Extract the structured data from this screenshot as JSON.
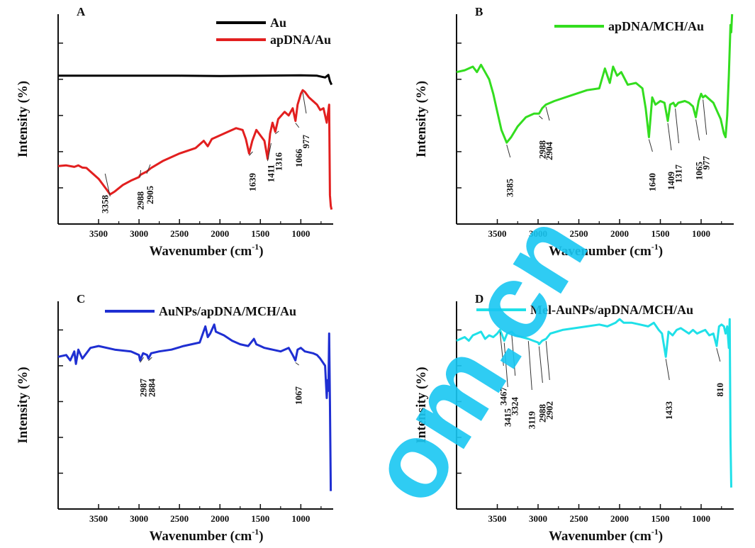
{
  "chart_data": [
    {
      "type": "line",
      "panel_label": "A",
      "xlabel": "Wavenumber (cm",
      "xlabel_sup": "-1",
      "xlabel_tail": ")",
      "ylabel": "Intensity   (%)",
      "xlim": [
        4000,
        600
      ],
      "x_reversed": true,
      "xticks": [
        3500,
        3000,
        2500,
        2000,
        1500,
        1000
      ],
      "xtick_labels": [
        "3500",
        "3000",
        "2500",
        "2000",
        "1500",
        "1000"
      ],
      "yticks": [
        0,
        1,
        2,
        3,
        4,
        5
      ],
      "ylim": [
        0,
        5.8
      ],
      "y_tick_labels_shown": false,
      "legend": [
        {
          "name": "Au",
          "color": "#000000"
        },
        {
          "name": "apDNA/Au",
          "color": "#e21f1f"
        }
      ],
      "series": [
        {
          "name": "Au",
          "color": "#000000",
          "x": [
            4000,
            3600,
            3000,
            2500,
            2000,
            1500,
            1000,
            800,
            700,
            660,
            640,
            620
          ],
          "y": [
            4.1,
            4.1,
            4.1,
            4.1,
            4.09,
            4.1,
            4.11,
            4.1,
            4.05,
            4.12,
            3.95,
            3.85
          ]
        },
        {
          "name": "apDNA/Au",
          "color": "#e21f1f",
          "x": [
            4000,
            3900,
            3800,
            3750,
            3700,
            3650,
            3600,
            3500,
            3400,
            3358,
            3300,
            3200,
            3100,
            3000,
            2988,
            2950,
            2905,
            2850,
            2700,
            2500,
            2300,
            2200,
            2150,
            2100,
            2000,
            1900,
            1800,
            1720,
            1680,
            1639,
            1600,
            1550,
            1500,
            1450,
            1411,
            1380,
            1350,
            1316,
            1280,
            1200,
            1150,
            1100,
            1066,
            1040,
            1000,
            977,
            950,
            900,
            850,
            800,
            760,
            720,
            700,
            680,
            650,
            640,
            630,
            620
          ],
          "y": [
            1.6,
            1.62,
            1.58,
            1.62,
            1.56,
            1.55,
            1.45,
            1.25,
            0.95,
            0.82,
            0.9,
            1.08,
            1.2,
            1.3,
            1.35,
            1.4,
            1.45,
            1.55,
            1.75,
            1.95,
            2.1,
            2.3,
            2.15,
            2.35,
            2.45,
            2.55,
            2.65,
            2.6,
            2.35,
            1.95,
            2.3,
            2.6,
            2.45,
            2.3,
            1.8,
            2.5,
            2.8,
            2.55,
            2.9,
            3.1,
            3.0,
            3.2,
            2.85,
            3.3,
            3.6,
            3.7,
            3.65,
            3.5,
            3.4,
            3.3,
            3.15,
            3.2,
            3.0,
            2.8,
            3.3,
            0.8,
            0.5,
            0.4
          ]
        }
      ],
      "annotations": [
        {
          "label": "3358",
          "x": 3358
        },
        {
          "label": "2988",
          "x": 2988
        },
        {
          "label": "2905",
          "x": 2905
        },
        {
          "label": "1639",
          "x": 1639
        },
        {
          "label": "1411",
          "x": 1411
        },
        {
          "label": "1316",
          "x": 1316
        },
        {
          "label": "1066",
          "x": 1066
        },
        {
          "label": "977",
          "x": 977
        }
      ]
    },
    {
      "type": "line",
      "panel_label": "B",
      "xlabel": "Wavenumber (cm",
      "xlabel_sup": "-1",
      "xlabel_tail": ")",
      "ylabel": "Intensity   (%)",
      "xlim": [
        4000,
        600
      ],
      "x_reversed": true,
      "xticks": [
        3500,
        3000,
        2500,
        2000,
        1500,
        1000
      ],
      "xtick_labels": [
        "3500",
        "3000",
        "2500",
        "2000",
        "1500",
        "1000"
      ],
      "yticks": [
        0,
        1,
        2,
        3,
        4,
        5
      ],
      "ylim": [
        0,
        5.8
      ],
      "y_tick_labels_shown": false,
      "legend": [
        {
          "name": "apDNA/MCH/Au",
          "color": "#33dd1f"
        }
      ],
      "series": [
        {
          "name": "apDNA/MCH/Au",
          "color": "#33dd1f",
          "x": [
            4000,
            3900,
            3800,
            3750,
            3700,
            3650,
            3600,
            3550,
            3500,
            3450,
            3385,
            3330,
            3250,
            3150,
            3050,
            2988,
            2950,
            2904,
            2800,
            2600,
            2400,
            2250,
            2180,
            2120,
            2080,
            2030,
            1980,
            1900,
            1800,
            1720,
            1680,
            1640,
            1600,
            1560,
            1500,
            1450,
            1409,
            1380,
            1340,
            1317,
            1280,
            1200,
            1150,
            1100,
            1065,
            1030,
            1000,
            977,
            950,
            900,
            850,
            800,
            760,
            720,
            700,
            680,
            660,
            640,
            630,
            620
          ],
          "y": [
            4.2,
            4.25,
            4.35,
            4.2,
            4.4,
            4.2,
            4.0,
            3.6,
            3.1,
            2.6,
            2.25,
            2.4,
            2.7,
            2.95,
            3.05,
            3.05,
            3.2,
            3.3,
            3.4,
            3.55,
            3.7,
            3.75,
            4.3,
            3.9,
            4.35,
            4.1,
            4.2,
            3.85,
            3.9,
            3.75,
            3.2,
            2.4,
            3.5,
            3.3,
            3.4,
            3.35,
            2.85,
            3.3,
            3.35,
            3.25,
            3.35,
            3.4,
            3.35,
            3.25,
            2.95,
            3.4,
            3.6,
            3.5,
            3.55,
            3.45,
            3.35,
            3.1,
            2.9,
            2.5,
            2.4,
            3.0,
            4.1,
            5.5,
            5.3,
            5.8
          ]
        }
      ],
      "annotations": [
        {
          "label": "3385",
          "x": 3385
        },
        {
          "label": "2988",
          "x": 2988
        },
        {
          "label": "2904",
          "x": 2904
        },
        {
          "label": "1640",
          "x": 1640
        },
        {
          "label": "1409",
          "x": 1409
        },
        {
          "label": "1317",
          "x": 1317
        },
        {
          "label": "1065",
          "x": 1065
        },
        {
          "label": "977",
          "x": 977
        }
      ]
    },
    {
      "type": "line",
      "panel_label": "C",
      "xlabel": "Wavenumber (cm",
      "xlabel_sup": "-1",
      "xlabel_tail": ")",
      "ylabel": "Intensity   (%)",
      "xlim": [
        4000,
        600
      ],
      "x_reversed": true,
      "xticks": [
        3500,
        3000,
        2500,
        2000,
        1500,
        1000
      ],
      "xtick_labels": [
        "3500",
        "3000",
        "2500",
        "2000",
        "1500",
        "1000"
      ],
      "yticks": [
        0,
        1,
        2,
        3,
        4,
        5
      ],
      "ylim": [
        0,
        5.8
      ],
      "y_tick_labels_shown": false,
      "legend": [
        {
          "name": "AuNPs/apDNA/MCH/Au",
          "color": "#1f2fd2"
        }
      ],
      "series": [
        {
          "name": "AuNPs/apDNA/MCH/Au",
          "color": "#1f2fd2",
          "x": [
            4000,
            3900,
            3850,
            3800,
            3780,
            3750,
            3700,
            3650,
            3600,
            3500,
            3300,
            3100,
            3000,
            2987,
            2950,
            2900,
            2884,
            2850,
            2750,
            2600,
            2450,
            2350,
            2250,
            2180,
            2150,
            2120,
            2070,
            2050,
            2000,
            1950,
            1850,
            1750,
            1650,
            1580,
            1550,
            1500,
            1450,
            1350,
            1250,
            1150,
            1100,
            1067,
            1040,
            1000,
            950,
            850,
            800,
            760,
            700,
            680,
            670,
            660,
            650,
            640,
            630
          ],
          "y": [
            4.25,
            4.3,
            4.15,
            4.4,
            4.05,
            4.45,
            4.2,
            4.35,
            4.5,
            4.55,
            4.45,
            4.4,
            4.3,
            4.15,
            4.35,
            4.3,
            4.2,
            4.35,
            4.4,
            4.45,
            4.55,
            4.6,
            4.65,
            5.1,
            4.8,
            4.9,
            5.15,
            4.95,
            4.9,
            4.85,
            4.7,
            4.6,
            4.55,
            4.75,
            4.6,
            4.55,
            4.5,
            4.45,
            4.4,
            4.5,
            4.3,
            4.15,
            4.45,
            4.5,
            4.4,
            4.35,
            4.3,
            4.2,
            4.0,
            3.1,
            3.6,
            3.3,
            4.9,
            3.0,
            0.5
          ]
        }
      ],
      "annotations": [
        {
          "label": "2987",
          "x": 2987
        },
        {
          "label": "2884",
          "x": 2884
        },
        {
          "label": "1067",
          "x": 1067
        }
      ]
    },
    {
      "type": "line",
      "panel_label": "D",
      "xlabel": "Wavenumber (cm",
      "xlabel_sup": "-1",
      "xlabel_tail": ")",
      "ylabel": "Intensity   (%)",
      "xlim": [
        4000,
        600
      ],
      "x_reversed": true,
      "xticks": [
        3500,
        3000,
        2500,
        2000,
        1500,
        1000
      ],
      "xtick_labels": [
        "3500",
        "3000",
        "2500",
        "2000",
        "1500",
        "1000"
      ],
      "yticks": [
        0,
        1,
        2,
        3,
        4,
        5
      ],
      "ylim": [
        0,
        5.8
      ],
      "y_tick_labels_shown": false,
      "legend": [
        {
          "name": "Mel-AuNPs/apDNA/MCH/Au",
          "color": "#1fe0e8"
        }
      ],
      "series": [
        {
          "name": "Mel-AuNPs/apDNA/MCH/Au",
          "color": "#1fe0e8",
          "x": [
            4000,
            3950,
            3900,
            3850,
            3800,
            3750,
            3700,
            3650,
            3600,
            3550,
            3500,
            3467,
            3440,
            3415,
            3380,
            3324,
            3280,
            3200,
            3119,
            3060,
            3000,
            2988,
            2950,
            2902,
            2850,
            2700,
            2550,
            2400,
            2250,
            2150,
            2050,
            2000,
            1950,
            1850,
            1750,
            1650,
            1580,
            1520,
            1480,
            1433,
            1400,
            1350,
            1300,
            1250,
            1150,
            1100,
            1050,
            1000,
            950,
            900,
            850,
            810,
            780,
            750,
            720,
            700,
            680,
            660,
            650,
            640,
            630
          ],
          "y": [
            4.7,
            4.75,
            4.8,
            4.7,
            4.85,
            4.9,
            4.95,
            4.75,
            4.85,
            4.8,
            4.9,
            5.0,
            4.85,
            4.7,
            4.9,
            4.95,
            4.85,
            4.8,
            4.75,
            4.7,
            4.65,
            4.6,
            4.7,
            4.75,
            4.9,
            5.0,
            5.05,
            5.1,
            5.15,
            5.1,
            5.2,
            5.3,
            5.2,
            5.2,
            5.15,
            5.1,
            5.2,
            5.0,
            4.9,
            4.25,
            4.95,
            4.85,
            5.0,
            5.05,
            4.9,
            5.0,
            4.9,
            4.95,
            5.0,
            4.85,
            4.9,
            4.55,
            5.1,
            5.15,
            5.1,
            4.9,
            5.1,
            4.5,
            5.3,
            2.0,
            0.6
          ]
        }
      ],
      "annotations": [
        {
          "label": "3467",
          "x": 3467
        },
        {
          "label": "3415",
          "x": 3415
        },
        {
          "label": "3324",
          "x": 3324
        },
        {
          "label": "3119",
          "x": 3119
        },
        {
          "label": "2988",
          "x": 2988
        },
        {
          "label": "2902",
          "x": 2902
        },
        {
          "label": "1433",
          "x": 1433
        },
        {
          "label": "810",
          "x": 810
        }
      ]
    }
  ],
  "watermark": {
    "text": "om.cn",
    "color": "#19c7f2"
  }
}
